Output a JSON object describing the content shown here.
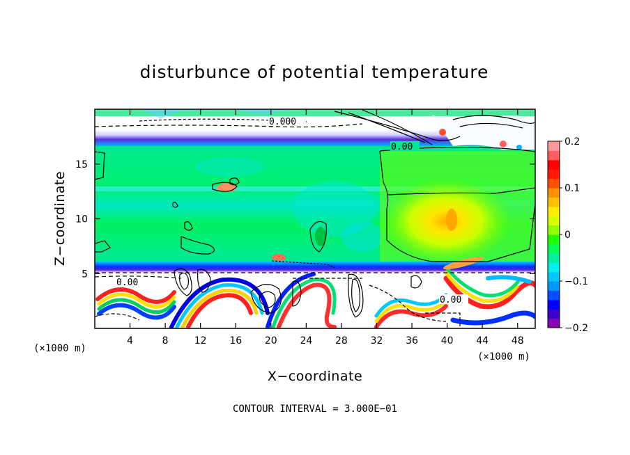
{
  "chart_data": {
    "type": "heatmap",
    "title": "disturbunce of potential temperature",
    "xlabel": "X−coordinate",
    "ylabel": "Z−coordinate",
    "x_unit": "(×1000 m)",
    "z_unit": "(×1000 m)",
    "xlim": [
      0,
      50
    ],
    "ylim": [
      0,
      20
    ],
    "x_ticks": [
      4,
      8,
      12,
      16,
      20,
      24,
      28,
      32,
      36,
      40,
      44,
      48
    ],
    "y_ticks": [
      5,
      10,
      15
    ],
    "x_tick_labels": [
      "4",
      "8",
      "12",
      "16",
      "20",
      "24",
      "28",
      "32",
      "36",
      "40",
      "44",
      "48"
    ],
    "y_tick_labels": [
      "5",
      "10",
      "15"
    ],
    "colorbar": {
      "min": -0.2,
      "max": 0.2,
      "ticks": [
        0.2,
        0.1,
        0,
        -0.1,
        -0.2
      ],
      "tick_labels": [
        "0.2",
        "0.1",
        "0",
        "−0.1",
        "−0.2"
      ],
      "colors": [
        "#8a00b8",
        "#3a00d0",
        "#0000ff",
        "#0050ff",
        "#0096ff",
        "#00c8ff",
        "#00f0f0",
        "#00f0a0",
        "#00ff50",
        "#20ff00",
        "#90ff00",
        "#d8ff00",
        "#ffee00",
        "#ffc000",
        "#ff9000",
        "#ff5000",
        "#ff1a00",
        "#ff0000",
        "#ff5e5e",
        "#ff9a9a"
      ]
    },
    "contour_labels": [
      "0.000",
      "0.00",
      "0.00",
      "0.00"
    ],
    "contour_interval_text": "CONTOUR INTERVAL = 3.000E−01",
    "fields": {
      "lower_layer_top": 5.3,
      "upper_layer_bottom": 16.9,
      "warm_core_center": [
        39,
        9.5
      ],
      "mid_layer_value": 0.0
    }
  }
}
